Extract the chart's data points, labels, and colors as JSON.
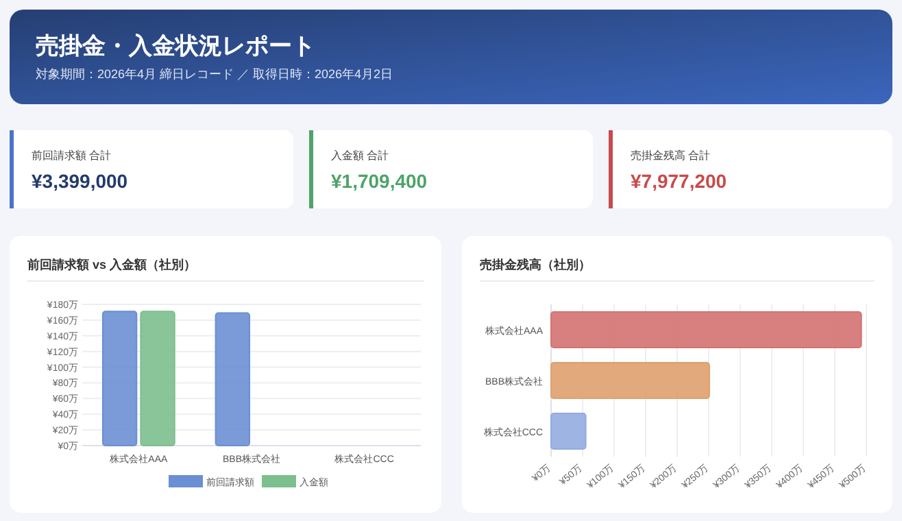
{
  "chart_data": [
    {
      "type": "other",
      "title": "売掛金・入金状況レポート",
      "subtitle": "対象期間：2026年4月 締日レコード ／ 取得日時：2026年4月2日",
      "annotations": [
        "前回請求額 合計",
        "¥3,399,000",
        "入金額 合計",
        "¥1,709,400",
        "売掛金残高 合計",
        "¥7,977,200"
      ]
    },
    {
      "type": "bar",
      "title": "前回請求額 vs 入金額（社別）",
      "categories": [
        "株式会社AAA",
        "BBB株式会社",
        "株式会社CCC"
      ],
      "series": [
        {
          "name": "前回請求額",
          "color": "#6b8fd4",
          "values": [
            171,
            169,
            0
          ]
        },
        {
          "name": "入金額",
          "color": "#7dbf8e",
          "values": [
            171,
            0,
            0
          ]
        }
      ],
      "ylim": [
        0,
        180
      ],
      "yticks": [
        {
          "value": 0,
          "label": "¥0万"
        },
        {
          "value": 20,
          "label": "¥20万"
        },
        {
          "value": 40,
          "label": "¥40万"
        },
        {
          "value": 60,
          "label": "¥60万"
        },
        {
          "value": 80,
          "label": "¥80万"
        },
        {
          "value": 100,
          "label": "¥100万"
        },
        {
          "value": 120,
          "label": "¥120万"
        },
        {
          "value": 140,
          "label": "¥140万"
        },
        {
          "value": 160,
          "label": "¥160万"
        },
        {
          "value": 180,
          "label": "¥180万"
        }
      ],
      "grid": "y",
      "legend": "bottom"
    },
    {
      "type": "bar",
      "title": "売掛金残高（社別）",
      "orientation": "horizontal",
      "categories": [
        "株式会社AAA",
        "BBB株式会社",
        "株式会社CCC"
      ],
      "values": [
        492,
        251,
        55
      ],
      "colors": [
        "#d47272",
        "#dfa06e",
        "#93acdf"
      ],
      "xlim": [
        0,
        500
      ],
      "xticks": [
        {
          "value": 0,
          "label": "¥0万"
        },
        {
          "value": 50,
          "label": "¥50万"
        },
        {
          "value": 100,
          "label": "¥100万"
        },
        {
          "value": 150,
          "label": "¥150万"
        },
        {
          "value": 200,
          "label": "¥200万"
        },
        {
          "value": 250,
          "label": "¥250万"
        },
        {
          "value": 300,
          "label": "¥300万"
        },
        {
          "value": 350,
          "label": "¥350万"
        },
        {
          "value": 400,
          "label": "¥400万"
        },
        {
          "value": 450,
          "label": "¥450万"
        },
        {
          "value": 500,
          "label": "¥500万"
        }
      ],
      "grid": "x"
    }
  ]
}
